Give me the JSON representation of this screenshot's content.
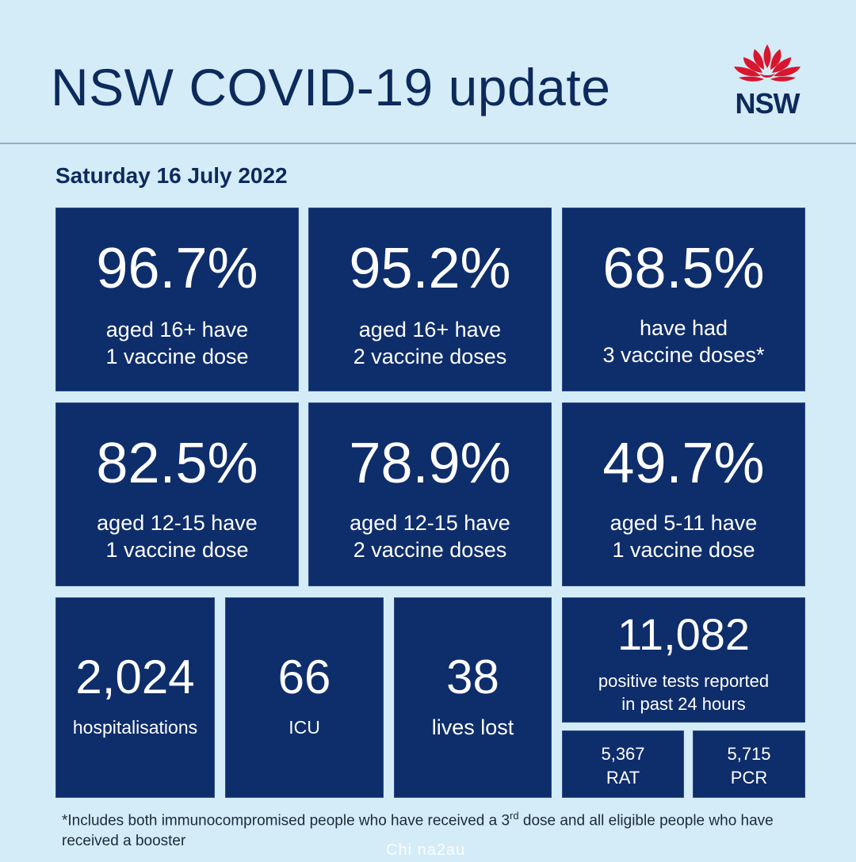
{
  "header": {
    "title": "NSW COVID-19 update",
    "logo_text": "NSW",
    "logo_icon": "waratah-flower-icon",
    "logo_color": "#d7172f"
  },
  "date": "Saturday 16 July 2022",
  "vaccination": [
    {
      "value": "96.7%",
      "line1": "aged 16+ have",
      "line2": "1 vaccine dose"
    },
    {
      "value": "95.2%",
      "line1": "aged 16+ have",
      "line2": "2 vaccine doses"
    },
    {
      "value": "68.5%",
      "line1": "have had",
      "line2": "3 vaccine doses*"
    },
    {
      "value": "82.5%",
      "line1": "aged 12-15 have",
      "line2": "1 vaccine dose"
    },
    {
      "value": "78.9%",
      "line1": "aged 12-15 have",
      "line2": "2 vaccine doses"
    },
    {
      "value": "49.7%",
      "line1": "aged 5-11 have",
      "line2": "1 vaccine dose"
    }
  ],
  "stats": {
    "hospitalisations": {
      "value": "2,024",
      "label": "hospitalisations"
    },
    "icu": {
      "value": "66",
      "label": "ICU"
    },
    "lives_lost": {
      "value": "38",
      "label": "lives lost"
    },
    "positive_tests": {
      "value": "11,082",
      "line1": "positive tests reported",
      "line2": "in past 24 hours"
    },
    "rat": {
      "value": "5,367",
      "label": "RAT"
    },
    "pcr": {
      "value": "5,715",
      "label": "PCR"
    }
  },
  "footnote": {
    "part1": "*Includes both immunocompromised people who have received a 3",
    "sup": "rd",
    "part2": " dose and all eligible people who have received a booster"
  },
  "watermark": "Chi na2au",
  "colors": {
    "background": "#d4ecf8",
    "tile": "#0e2d6b",
    "title": "#0d2a5c"
  }
}
